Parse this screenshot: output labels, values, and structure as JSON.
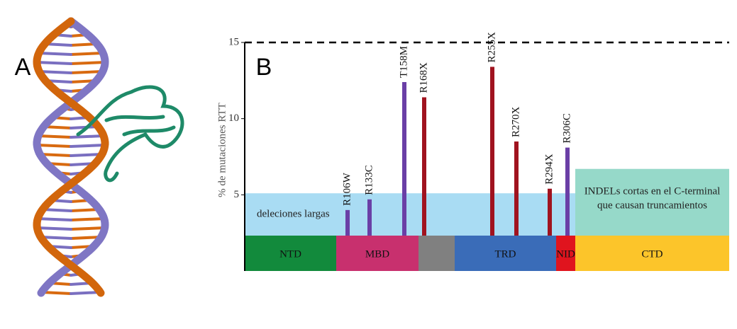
{
  "panels": [
    "A",
    "B"
  ],
  "chart_data": {
    "type": "bar",
    "ylabel": "% de mutaciones RTT",
    "ylim": [
      0,
      15
    ],
    "yticks": [
      5,
      10,
      15
    ],
    "hline": 15,
    "categories": [
      "R106W",
      "R133C",
      "T158M",
      "R168X",
      "R255X",
      "R270X",
      "R294X",
      "R306C"
    ],
    "values": [
      4.0,
      4.7,
      12.4,
      11.4,
      13.4,
      8.5,
      5.4,
      8.1
    ],
    "colors": [
      "#6a3fa6",
      "#6a3fa6",
      "#6a3fa6",
      "#a0131f",
      "#a0131f",
      "#a0131f",
      "#a0131f",
      "#6a3fa6"
    ],
    "regions": [
      {
        "lines": [
          "deleciones largas"
        ],
        "value": 5.1,
        "color": "#a9dcf3"
      },
      {
        "lines": [
          "INDELs cortas en el C-terminal",
          "que causan truncamientos"
        ],
        "value": 6.7,
        "color": "#96d9c9"
      }
    ],
    "domains": [
      {
        "label": "NTD",
        "color": "#128a3c"
      },
      {
        "label": "MBD",
        "color": "#c8306e"
      },
      {
        "label": null,
        "color": "#808080"
      },
      {
        "label": "TRD",
        "color": "#3a6cb8"
      },
      {
        "label": "NID",
        "color": "#e0141e"
      },
      {
        "label": "CTD",
        "color": "#fcc52a"
      }
    ]
  }
}
